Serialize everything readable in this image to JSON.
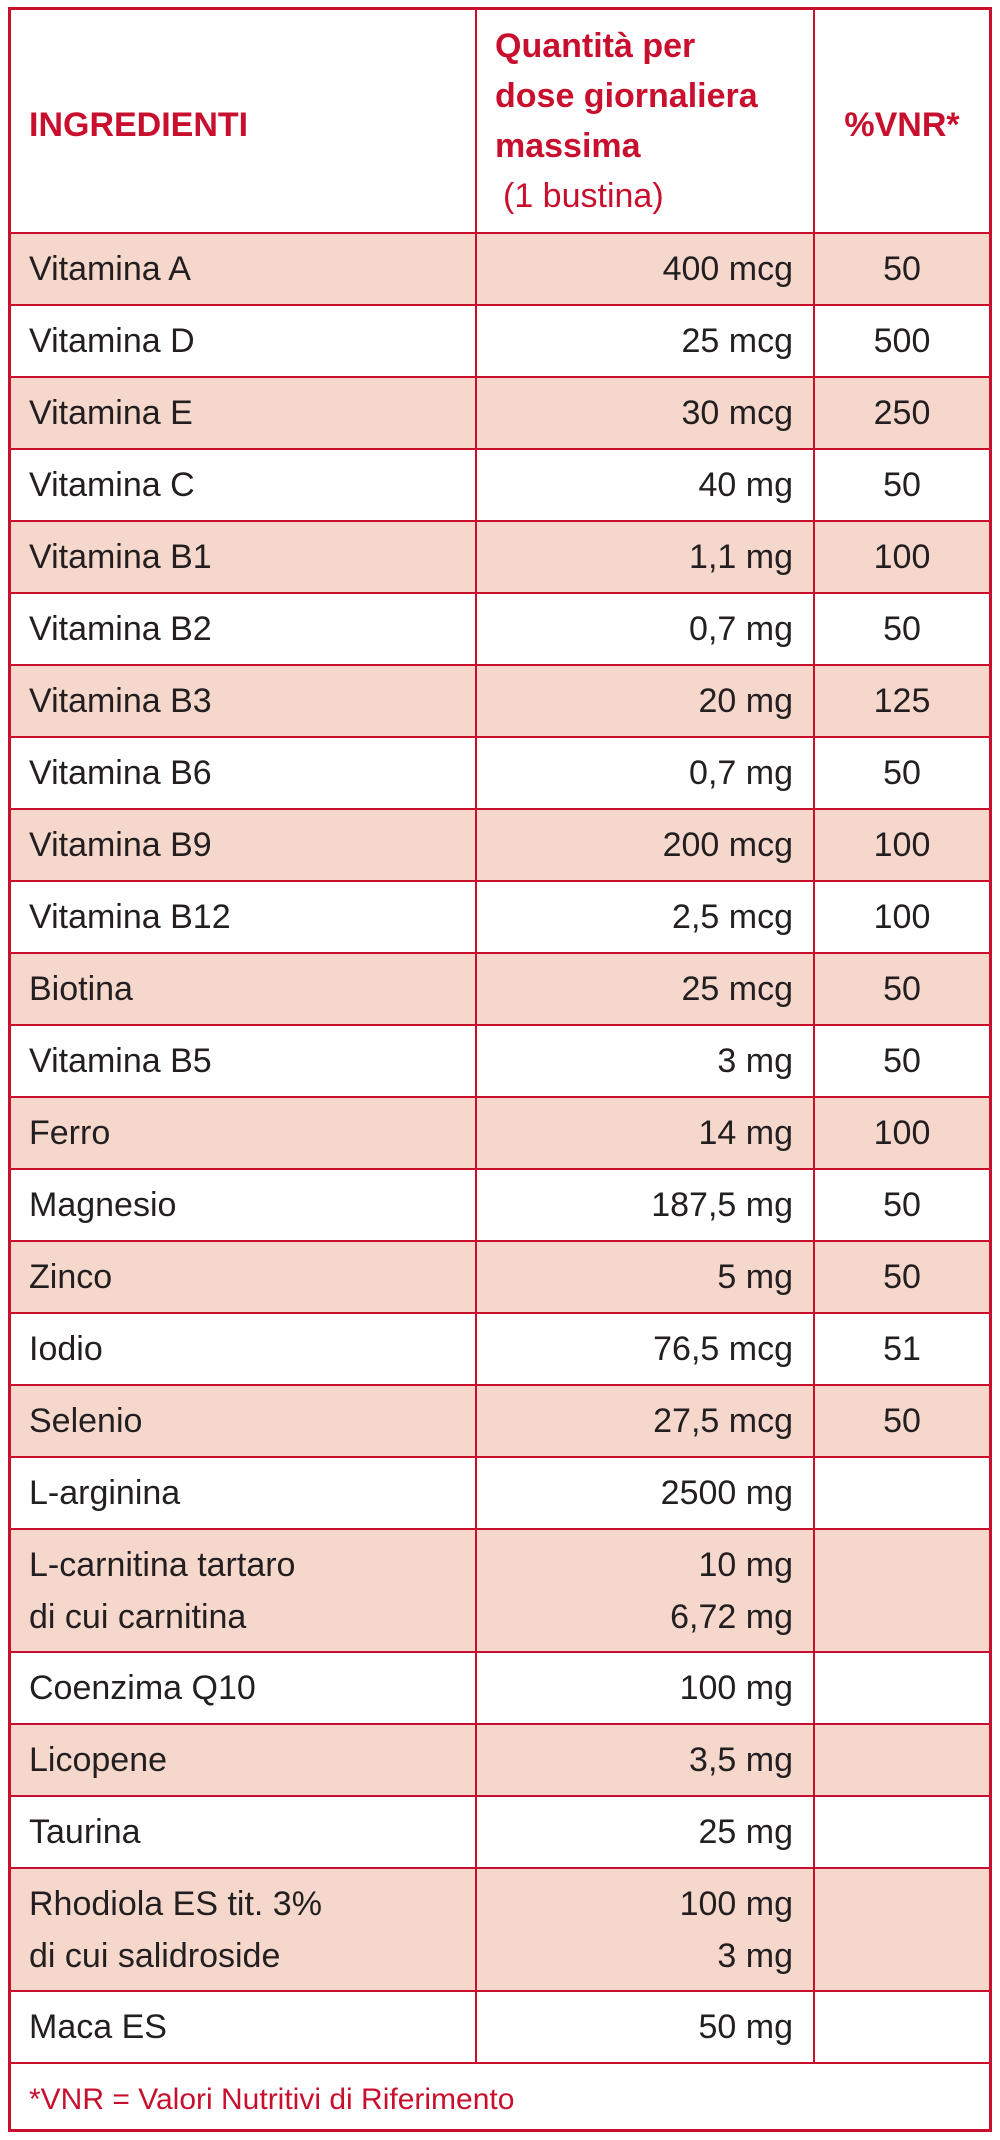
{
  "header": {
    "ingredients": "INGREDIENTI",
    "quantity_line1": "Quantità per",
    "quantity_line2": "dose giornaliera",
    "quantity_line3": "massima",
    "quantity_sub": "(1 bustina)",
    "vnr": "%VNR*"
  },
  "rows": [
    {
      "name": [
        "Vitamina A"
      ],
      "qty": [
        "400 mcg"
      ],
      "vnr": "50"
    },
    {
      "name": [
        "Vitamina D"
      ],
      "qty": [
        "25 mcg"
      ],
      "vnr": "500"
    },
    {
      "name": [
        "Vitamina E"
      ],
      "qty": [
        "30 mcg"
      ],
      "vnr": "250"
    },
    {
      "name": [
        "Vitamina C"
      ],
      "qty": [
        "40 mg"
      ],
      "vnr": "50"
    },
    {
      "name": [
        "Vitamina B1"
      ],
      "qty": [
        "1,1 mg"
      ],
      "vnr": "100"
    },
    {
      "name": [
        "Vitamina B2"
      ],
      "qty": [
        "0,7 mg"
      ],
      "vnr": "50"
    },
    {
      "name": [
        "Vitamina B3"
      ],
      "qty": [
        "20 mg"
      ],
      "vnr": "125"
    },
    {
      "name": [
        "Vitamina B6"
      ],
      "qty": [
        "0,7 mg"
      ],
      "vnr": "50"
    },
    {
      "name": [
        "Vitamina B9"
      ],
      "qty": [
        "200 mcg"
      ],
      "vnr": "100"
    },
    {
      "name": [
        "Vitamina B12"
      ],
      "qty": [
        "2,5 mcg"
      ],
      "vnr": "100"
    },
    {
      "name": [
        "Biotina"
      ],
      "qty": [
        "25 mcg"
      ],
      "vnr": "50"
    },
    {
      "name": [
        "Vitamina B5"
      ],
      "qty": [
        "3 mg"
      ],
      "vnr": "50"
    },
    {
      "name": [
        "Ferro"
      ],
      "qty": [
        "14 mg"
      ],
      "vnr": "100"
    },
    {
      "name": [
        "Magnesio"
      ],
      "qty": [
        "187,5 mg"
      ],
      "vnr": "50"
    },
    {
      "name": [
        "Zinco"
      ],
      "qty": [
        "5 mg"
      ],
      "vnr": "50"
    },
    {
      "name": [
        "Iodio"
      ],
      "qty": [
        "76,5 mcg"
      ],
      "vnr": "51"
    },
    {
      "name": [
        "Selenio"
      ],
      "qty": [
        "27,5 mcg"
      ],
      "vnr": "50"
    },
    {
      "name": [
        "L-arginina"
      ],
      "qty": [
        "2500 mg"
      ],
      "vnr": ""
    },
    {
      "name": [
        "L-carnitina tartaro",
        "di cui carnitina"
      ],
      "qty": [
        "10 mg",
        "6,72 mg"
      ],
      "vnr": ""
    },
    {
      "name": [
        "Coenzima Q10"
      ],
      "qty": [
        "100 mg"
      ],
      "vnr": ""
    },
    {
      "name": [
        "Licopene"
      ],
      "qty": [
        "3,5 mg"
      ],
      "vnr": ""
    },
    {
      "name": [
        "Taurina"
      ],
      "qty": [
        "25 mg"
      ],
      "vnr": ""
    },
    {
      "name": [
        "Rhodiola ES tit. 3%",
        "di cui salidroside"
      ],
      "qty": [
        "100 mg",
        "3 mg"
      ],
      "vnr": ""
    },
    {
      "name": [
        "Maca ES"
      ],
      "qty": [
        "50 mg"
      ],
      "vnr": ""
    }
  ],
  "footnote": "*VNR = Valori Nutritivi di Riferimento",
  "colors": {
    "accent": "#c8102e",
    "row_shade": "#f5d7cc"
  }
}
